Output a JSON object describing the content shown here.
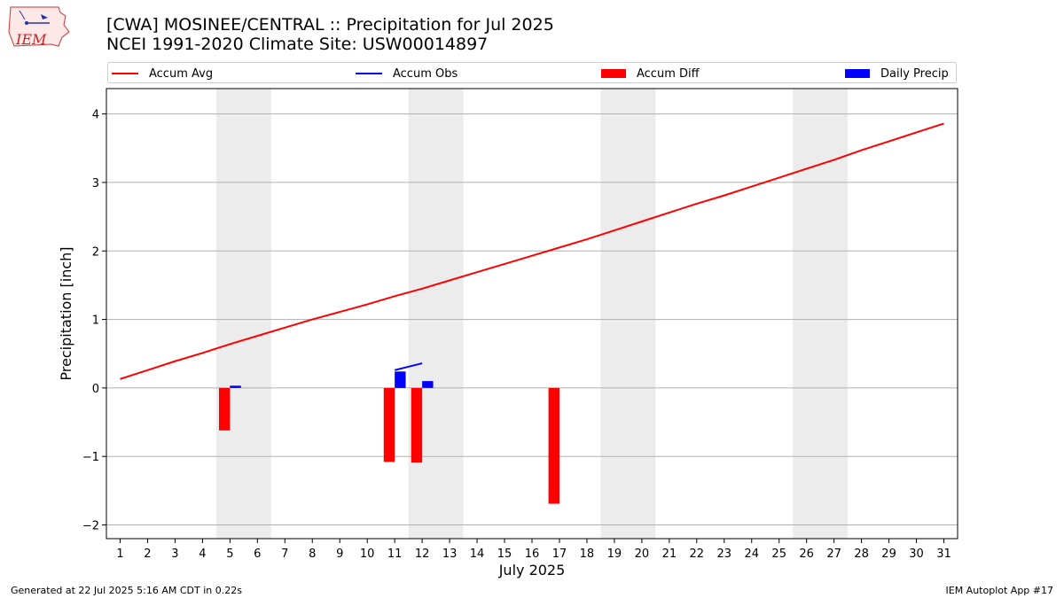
{
  "header": {
    "title_line1": "[CWA] MOSINEE/CENTRAL :: Precipitation for Jul 2025",
    "title_line2": "NCEI 1991-2020 Climate Site: USW00014897",
    "logo_text": "IEM"
  },
  "legend": [
    {
      "label": "Accum Avg",
      "kind": "line",
      "color": "#ff0000"
    },
    {
      "label": "Accum Obs",
      "kind": "line",
      "color": "#0000ff"
    },
    {
      "label": "Accum Diff",
      "kind": "patch",
      "color": "#ff0000"
    },
    {
      "label": "Daily Precip",
      "kind": "patch",
      "color": "#0000ff"
    }
  ],
  "footer": {
    "left": "Generated at 22 Jul 2025 5:16 AM CDT in 0.22s",
    "right": "IEM Autoplot App #17"
  },
  "chart_data": {
    "type": "bar",
    "title": "[CWA] MOSINEE/CENTRAL :: Precipitation for Jul 2025",
    "xlabel": "July 2025",
    "ylabel": "Precipitation [inch]",
    "xlim": [
      0.5,
      31.5
    ],
    "ylim": [
      -2.2,
      4.37
    ],
    "yticks": [
      -2,
      -1,
      0,
      1,
      2,
      3,
      4
    ],
    "ytick_labels": [
      "−2",
      "−1",
      "0",
      "1",
      "2",
      "3",
      "4"
    ],
    "xticks": [
      1,
      2,
      3,
      4,
      5,
      6,
      7,
      8,
      9,
      10,
      11,
      12,
      13,
      14,
      15,
      16,
      17,
      18,
      19,
      20,
      21,
      22,
      23,
      24,
      25,
      26,
      27,
      28,
      29,
      30,
      31
    ],
    "grid": "y",
    "weekend_bands": [
      [
        4.5,
        6.5
      ],
      [
        11.5,
        13.5
      ],
      [
        18.5,
        20.5
      ],
      [
        25.5,
        27.5
      ]
    ],
    "series": [
      {
        "name": "Accum Avg",
        "kind": "line",
        "color": "#ff0000",
        "x": [
          1,
          2,
          3,
          4,
          5,
          6,
          7,
          8,
          9,
          10,
          11,
          12,
          13,
          14,
          15,
          16,
          17,
          18,
          19,
          20,
          21,
          22,
          23,
          24,
          25,
          26,
          27,
          28,
          29,
          30,
          31
        ],
        "values": [
          0.13,
          0.26,
          0.39,
          0.51,
          0.64,
          0.76,
          0.88,
          1.0,
          1.11,
          1.22,
          1.34,
          1.45,
          1.57,
          1.69,
          1.81,
          1.93,
          2.05,
          2.17,
          2.3,
          2.43,
          2.56,
          2.69,
          2.81,
          2.94,
          3.07,
          3.2,
          3.33,
          3.47,
          3.6,
          3.73,
          3.86
        ]
      },
      {
        "name": "Accum Obs",
        "kind": "line",
        "color": "#0000ff",
        "x": [
          5,
          6,
          11,
          12
        ],
        "values": [
          0.02,
          0.02,
          0.26,
          0.36
        ],
        "segments": [
          [
            5,
            5.4
          ],
          [
            11,
            12
          ]
        ]
      },
      {
        "name": "Accum Diff",
        "kind": "bar",
        "color": "#ff0000",
        "offset": -0.2,
        "x": [
          5,
          11,
          12,
          17
        ],
        "values": [
          -0.62,
          -1.08,
          -1.09,
          -1.69
        ]
      },
      {
        "name": "Daily Precip",
        "kind": "bar",
        "color": "#0000ff",
        "offset": 0.2,
        "x": [
          5,
          11,
          12
        ],
        "values": [
          0.02,
          0.24,
          0.1
        ]
      }
    ]
  }
}
